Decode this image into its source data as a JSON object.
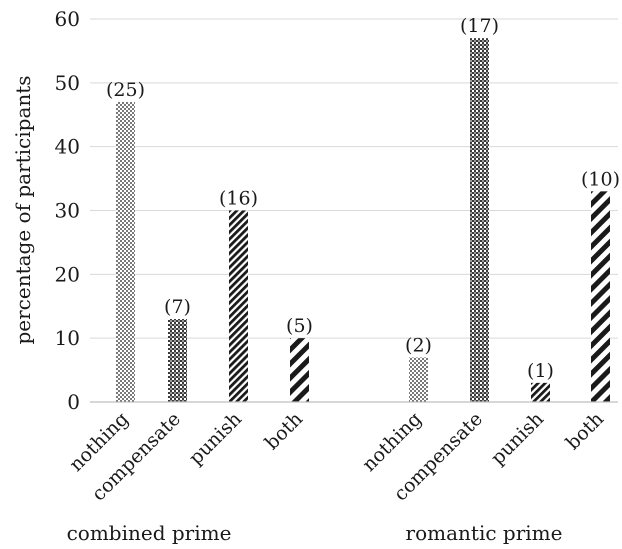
{
  "chart_data": {
    "type": "bar",
    "ylabel": "percentage of participants",
    "ylim": [
      0,
      60
    ],
    "yticks": [
      0,
      10,
      20,
      30,
      40,
      50,
      60
    ],
    "grid": true,
    "groups": [
      {
        "name": "combined prime",
        "bars": [
          {
            "category": "nothing",
            "value": 47,
            "count_label": "(25)",
            "pattern": "dots"
          },
          {
            "category": "compensate",
            "value": 13,
            "count_label": "(7)",
            "pattern": "crosshatch"
          },
          {
            "category": "punish",
            "value": 30,
            "count_label": "(16)",
            "pattern": "stripes-thin"
          },
          {
            "category": "both",
            "value": 10,
            "count_label": "(5)",
            "pattern": "stripes-wide"
          }
        ]
      },
      {
        "name": "romantic prime",
        "bars": [
          {
            "category": "nothing",
            "value": 7,
            "count_label": "(2)",
            "pattern": "dots"
          },
          {
            "category": "compensate",
            "value": 57,
            "count_label": "(17)",
            "pattern": "crosshatch"
          },
          {
            "category": "punish",
            "value": 3,
            "count_label": "(1)",
            "pattern": "stripes-thin"
          },
          {
            "category": "both",
            "value": 33,
            "count_label": "(10)",
            "pattern": "stripes-wide"
          }
        ]
      }
    ],
    "colors": {
      "ink": "#1a1a1a",
      "grid": "#d9d9d9",
      "axis": "#bfbfbf"
    }
  }
}
